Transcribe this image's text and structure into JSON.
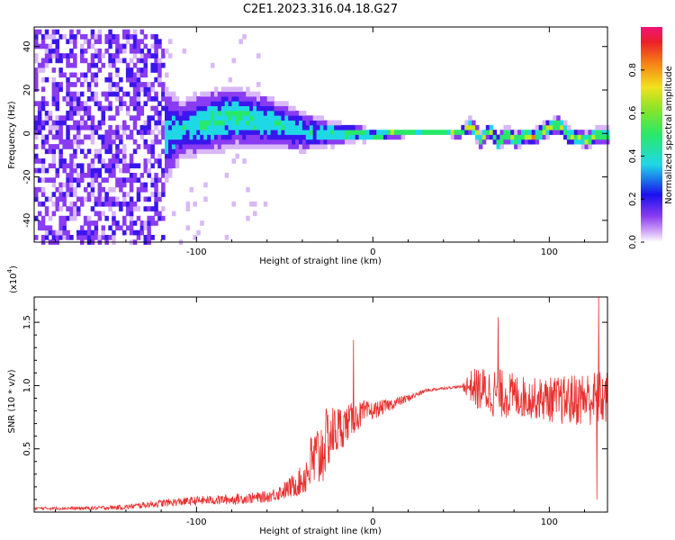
{
  "title": "C2E1.2023.316.04.18.G27",
  "colors": {
    "spectrogram_hot": "#e6273a",
    "spectrogram_warm": "#3cf04a",
    "spectrogram_cool": "#1fd8e6",
    "spectrogram_cold": "#5a16f0",
    "spectrogram_faint": "#c8a8f4",
    "snr_line": "#e8302f"
  },
  "chart_data": [
    {
      "type": "heatmap",
      "xlabel": "Height of straight line (km)",
      "ylabel": "Frequency (Hz)",
      "xlim": [
        -192,
        133
      ],
      "ylim": [
        -50,
        49
      ],
      "xticks": [
        -100,
        0,
        100
      ],
      "yticks": [
        -40,
        -20,
        0,
        20,
        40
      ],
      "colorbar": {
        "label": "Normalized spectral amplitude",
        "ticks": [
          "0.0",
          "0.2",
          "0.4",
          "0.6",
          "0.8"
        ],
        "range": [
          0,
          1
        ]
      },
      "ridge": {
        "description_points_x": [
          -192,
          -150,
          -130,
          -110,
          -90,
          -80,
          -60,
          -40,
          -25,
          -10,
          0,
          10,
          20,
          30,
          40,
          48,
          55,
          60,
          65,
          70,
          75,
          80,
          85,
          90,
          95,
          100,
          105,
          110,
          115,
          120,
          125,
          133
        ],
        "center_freq_hz": [
          -5,
          -5,
          -6,
          2,
          6,
          8,
          5,
          1,
          0,
          0,
          -1,
          0,
          0,
          0,
          0,
          0,
          4,
          -3,
          2,
          -4,
          0,
          -3,
          -1,
          -2,
          1,
          3,
          4,
          -1,
          -2,
          -3,
          -1,
          -1
        ],
        "peak_amplitude": [
          0.15,
          0.18,
          0.3,
          0.35,
          0.45,
          0.45,
          0.4,
          0.35,
          0.4,
          0.55,
          0.6,
          0.7,
          0.9,
          0.9,
          0.85,
          0.75,
          0.65,
          0.6,
          0.6,
          0.6,
          0.6,
          0.65,
          0.65,
          0.65,
          0.65,
          0.7,
          0.7,
          0.65,
          0.6,
          0.6,
          0.6,
          0.6
        ],
        "spread_hz": [
          45,
          45,
          30,
          12,
          12,
          12,
          10,
          8,
          5,
          3,
          2,
          1.5,
          1,
          1,
          1,
          1.5,
          3,
          3,
          3,
          3,
          3,
          3,
          3,
          3,
          3,
          3,
          3,
          3,
          3,
          3,
          3,
          3
        ]
      }
    },
    {
      "type": "line",
      "xlabel": "Height of straight line (km)",
      "ylabel": "SNR (10 * v/v)",
      "y_multiplier": "(x10",
      "y_multiplier_exp": "4",
      "y_multiplier_close": ")",
      "xlim": [
        -192,
        133
      ],
      "ylim": [
        0,
        17000
      ],
      "xticks": [
        -100,
        0,
        100
      ],
      "yticks": [
        5000,
        10000,
        15000
      ],
      "ytick_labels": [
        "0.5",
        "1.0",
        "1.5"
      ],
      "series": [
        {
          "x": [
            -192,
            -160,
            -140,
            -120,
            -100,
            -80,
            -60,
            -50,
            -40,
            -35,
            -30,
            -25,
            -20,
            -15,
            -10,
            -5,
            0,
            10,
            20,
            30,
            40,
            50,
            55,
            60,
            70,
            80,
            90,
            100,
            110,
            120,
            133
          ],
          "y": [
            300,
            300,
            400,
            700,
            900,
            1000,
            1200,
            1700,
            2500,
            3800,
            4500,
            6000,
            6500,
            7000,
            7500,
            7800,
            8000,
            8500,
            9000,
            9600,
            9800,
            9900,
            10000,
            9700,
            9400,
            9200,
            9000,
            8900,
            8800,
            9000,
            9000
          ],
          "noise_amplitude": [
            100,
            150,
            200,
            300,
            350,
            400,
            450,
            700,
            1200,
            2500,
            3000,
            2500,
            2000,
            1500,
            1200,
            1000,
            700,
            500,
            300,
            150,
            100,
            100,
            1200,
            1800,
            2000,
            1800,
            1600,
            1800,
            2000,
            2200,
            2200
          ],
          "spikes": [
            {
              "x": -11,
              "y": 13600
            },
            {
              "x": 71,
              "y": 15400
            },
            {
              "x": 128,
              "y": 17000
            },
            {
              "x": 127,
              "y": 1000
            }
          ]
        }
      ]
    }
  ]
}
